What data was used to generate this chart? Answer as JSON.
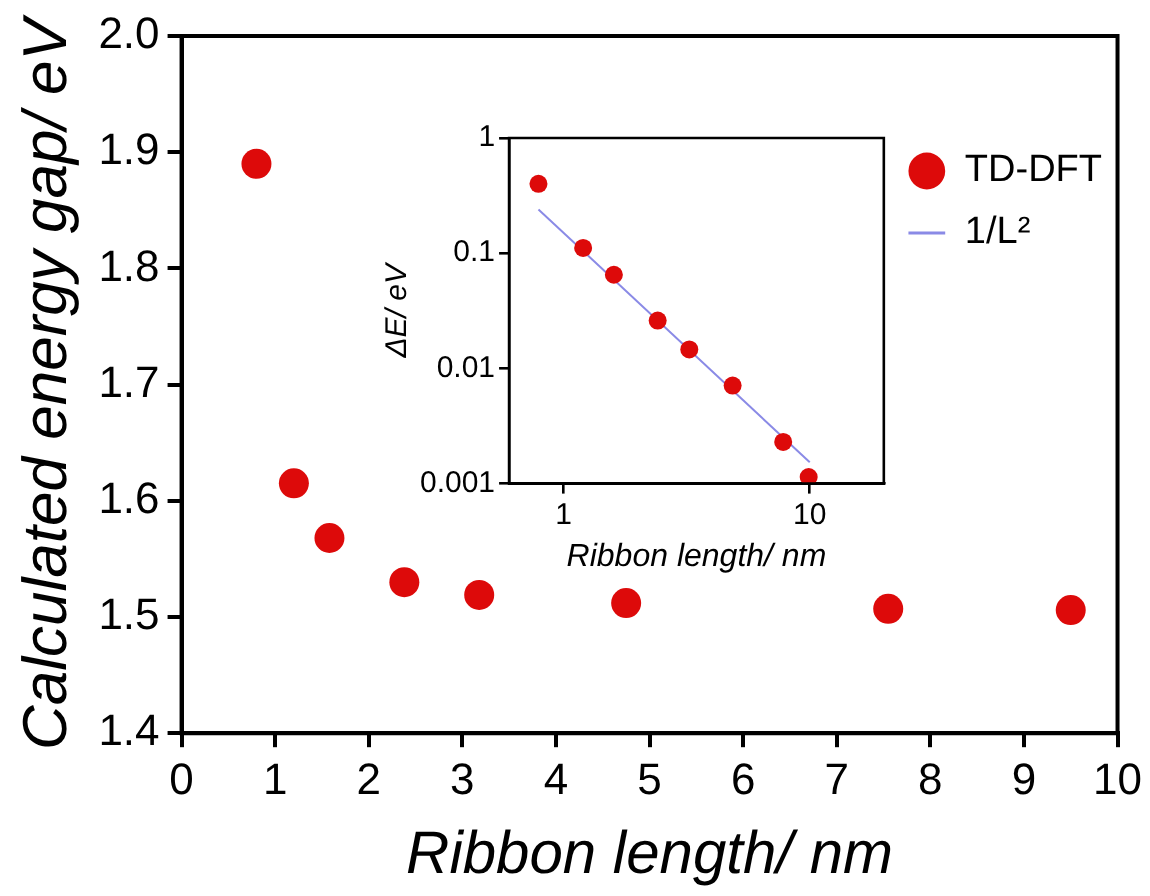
{
  "chart_data": [
    {
      "type": "scatter",
      "xlabel": "Ribbon length/ nm",
      "ylabel": "Calculated energy gap/ eV",
      "xlim": [
        0,
        10
      ],
      "xticks": [
        0,
        1,
        2,
        3,
        4,
        5,
        6,
        7,
        8,
        9,
        10
      ],
      "ylim": [
        1.4,
        2.0
      ],
      "yticks": [
        1.4,
        1.5,
        1.6,
        1.7,
        1.8,
        1.9,
        {
          "value": 2.0,
          "label": "2.0"
        }
      ],
      "grid": false,
      "marker": "circle",
      "series": [
        {
          "color": "#dd0a0a",
          "x": [
            0.8,
            1.2,
            1.58,
            2.38,
            3.18,
            4.75,
            7.55,
            9.5
          ],
          "values": [
            1.89,
            1.615,
            1.568,
            1.53,
            1.519,
            1.512,
            1.507,
            1.506
          ]
        }
      ]
    },
    {
      "type": "scatter",
      "xlabel": "Ribbon length/ nm",
      "ylabel": "ΔE/ eV",
      "log": "xy",
      "xlim": [
        0.6,
        20
      ],
      "xticks": [
        1,
        10
      ],
      "ylim": [
        0.001,
        1
      ],
      "yticks": [
        0.001,
        0.01,
        0.1,
        1
      ],
      "grid": false,
      "legend": "top right",
      "marker": "circle",
      "series": [
        {
          "name": "TD-DFT",
          "color": "#dd0a0a",
          "x": [
            0.79,
            1.2,
            1.6,
            2.41,
            3.24,
            4.86,
            7.8,
            9.9
          ],
          "values": [
            0.4,
            0.111,
            0.065,
            0.026,
            0.0146,
            0.0071,
            0.0023,
            0.00114
          ]
        },
        {
          "name": "1/L²",
          "type": "line",
          "color": "#8a8ae6",
          "line_style": "solid",
          "marker": "none",
          "x": [
            0.79,
            10
          ],
          "values": [
            0.24,
            0.00153
          ]
        }
      ]
    }
  ]
}
